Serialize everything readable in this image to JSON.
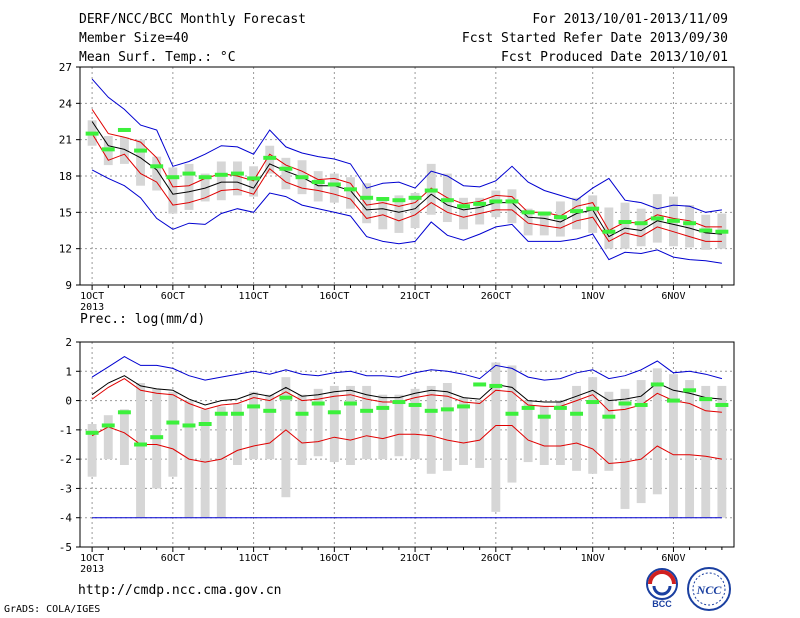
{
  "header": {
    "title": "DERF/NCC/BCC Monthly Forecast",
    "members": "Member Size=40",
    "variable": "Mean Surf. Temp.: °C",
    "period": "For 2013/10/01-2013/11/09",
    "started": "Fcst Started Refer Date 2013/09/30",
    "produced": "Fcst Produced Date 2013/10/01"
  },
  "footer": {
    "url": "http://cmdp.ncc.cma.gov.cn",
    "credit": "GrADS: COLA/IGES",
    "logo_left_text": "BCC",
    "logo_right_text": "NCC"
  },
  "colors": {
    "mean": "#000000",
    "spread": "#e00000",
    "extreme": "#0000d0",
    "box": "#d6d6d6",
    "climatology": "#3cf03c",
    "grid": "#9a9a9a"
  },
  "chart_data": [
    {
      "type": "line",
      "title": "Mean Surf. Temp.: °C",
      "x_labels": [
        "1OCT\n2013",
        "6OCT",
        "11OCT",
        "16OCT",
        "21OCT",
        "26OCT",
        "1NOV",
        "6NOV"
      ],
      "x_label_days": [
        1,
        6,
        11,
        16,
        21,
        26,
        32,
        37
      ],
      "days": 40,
      "ylim": [
        9,
        27
      ],
      "yticks": [
        9,
        12,
        15,
        18,
        21,
        24,
        27
      ],
      "grid": true,
      "series": [
        {
          "role": "extreme_high",
          "values": [
            26.0,
            24.5,
            23.5,
            22.2,
            21.8,
            18.8,
            19.2,
            19.8,
            20.5,
            20.4,
            19.8,
            21.8,
            20.4,
            19.9,
            19.6,
            19.4,
            19.0,
            17.0,
            17.4,
            17.5,
            17.0,
            18.4,
            18.0,
            17.2,
            17.1,
            17.6,
            18.8,
            17.5,
            16.8,
            16.4,
            16.0,
            17.0,
            17.8,
            16.0,
            15.8,
            15.3,
            15.6,
            15.5,
            15.0,
            15.2
          ]
        },
        {
          "role": "spread_high",
          "values": [
            23.5,
            21.5,
            21.2,
            20.8,
            19.5,
            17.1,
            17.2,
            17.8,
            18.2,
            18.0,
            17.6,
            19.8,
            18.9,
            18.4,
            17.7,
            17.8,
            17.4,
            15.6,
            15.8,
            15.5,
            15.8,
            17.0,
            16.2,
            15.7,
            15.9,
            16.4,
            16.3,
            15.0,
            15.0,
            14.7,
            15.5,
            15.8,
            13.5,
            14.2,
            14.1,
            14.8,
            14.5,
            14.3,
            13.8,
            13.8
          ]
        },
        {
          "role": "ensemble_mean",
          "values": [
            22.5,
            20.5,
            20.2,
            19.5,
            18.5,
            16.5,
            16.7,
            17.0,
            17.5,
            17.5,
            17.0,
            19.0,
            18.4,
            17.9,
            17.2,
            17.2,
            16.8,
            15.2,
            15.3,
            15.0,
            15.3,
            16.5,
            15.6,
            15.2,
            15.4,
            15.8,
            15.8,
            14.6,
            14.5,
            14.2,
            14.9,
            15.2,
            13.0,
            13.7,
            13.5,
            14.3,
            14.0,
            13.7,
            13.3,
            13.2
          ]
        },
        {
          "role": "spread_low",
          "values": [
            21.5,
            19.3,
            19.8,
            18.2,
            17.5,
            15.6,
            15.8,
            16.2,
            16.8,
            16.9,
            16.5,
            18.6,
            17.5,
            17.0,
            16.8,
            16.5,
            16.1,
            14.5,
            14.8,
            14.3,
            14.8,
            15.8,
            15.0,
            14.6,
            14.9,
            15.2,
            15.2,
            14.1,
            13.9,
            13.7,
            14.3,
            14.6,
            12.6,
            13.3,
            13.0,
            13.8,
            13.4,
            13.0,
            12.6,
            12.6
          ]
        },
        {
          "role": "extreme_low",
          "values": [
            18.5,
            17.8,
            17.2,
            16.2,
            14.5,
            13.6,
            14.1,
            14.0,
            14.9,
            15.3,
            15.0,
            16.6,
            16.3,
            15.6,
            15.3,
            15.0,
            14.7,
            13.0,
            12.6,
            12.4,
            12.6,
            14.2,
            13.1,
            12.7,
            13.2,
            13.8,
            14.0,
            12.6,
            12.6,
            12.6,
            12.8,
            13.2,
            11.1,
            11.7,
            11.6,
            11.9,
            11.3,
            11.1,
            11.0,
            10.8
          ]
        },
        {
          "role": "box_top",
          "values": [
            22.6,
            21.3,
            21.2,
            21.0,
            19.6,
            18.7,
            19.0,
            18.2,
            19.2,
            19.2,
            18.8,
            20.5,
            19.5,
            19.3,
            18.4,
            18.2,
            17.9,
            17.4,
            16.1,
            16.4,
            16.6,
            19.0,
            18.2,
            16.2,
            16.2,
            16.8,
            16.9,
            15.3,
            15.0,
            15.9,
            16.2,
            16.4,
            15.4,
            15.8,
            15.3,
            16.5,
            16.3,
            15.6,
            14.8,
            14.9
          ]
        },
        {
          "role": "box_bottom",
          "values": [
            20.5,
            18.9,
            19.0,
            17.2,
            16.8,
            14.9,
            15.2,
            15.9,
            16.0,
            16.4,
            16.3,
            18.2,
            16.9,
            16.5,
            15.9,
            15.8,
            15.3,
            14.1,
            13.6,
            13.3,
            13.7,
            14.8,
            14.2,
            13.6,
            14.0,
            14.6,
            14.1,
            13.1,
            13.1,
            13.0,
            13.6,
            13.3,
            12.0,
            12.0,
            12.2,
            12.5,
            12.2,
            12.1,
            11.9,
            12.0
          ]
        },
        {
          "role": "climatology",
          "values": [
            21.5,
            20.2,
            21.8,
            20.1,
            18.8,
            17.9,
            18.2,
            17.9,
            18.1,
            18.2,
            17.8,
            19.5,
            18.6,
            17.9,
            17.5,
            17.3,
            16.9,
            16.2,
            16.1,
            16.0,
            16.2,
            16.8,
            16.0,
            15.5,
            15.7,
            15.9,
            15.9,
            15.0,
            14.9,
            14.6,
            15.1,
            15.3,
            13.4,
            14.2,
            14.1,
            14.5,
            14.3,
            14.1,
            13.5,
            13.4
          ]
        }
      ]
    },
    {
      "type": "line",
      "title": "Prec.: log(mm/d)",
      "x_labels": [
        "1OCT\n2013",
        "6OCT",
        "11OCT",
        "16OCT",
        "21OCT",
        "26OCT",
        "1NOV",
        "6NOV"
      ],
      "x_label_days": [
        1,
        6,
        11,
        16,
        21,
        26,
        32,
        37
      ],
      "days": 40,
      "ylim": [
        -5,
        2
      ],
      "yticks": [
        -5,
        -4,
        -3,
        -2,
        -1,
        0,
        1,
        2
      ],
      "grid": true,
      "series": [
        {
          "role": "extreme_high",
          "values": [
            0.8,
            1.15,
            1.5,
            1.2,
            1.2,
            1.1,
            0.85,
            0.7,
            0.8,
            0.9,
            1.0,
            0.9,
            1.05,
            0.9,
            0.85,
            0.95,
            1.0,
            0.85,
            0.85,
            0.8,
            0.95,
            1.05,
            1.0,
            0.9,
            0.75,
            1.2,
            1.1,
            0.8,
            0.7,
            0.75,
            0.95,
            1.05,
            0.75,
            0.85,
            1.05,
            1.35,
            0.95,
            1.0,
            0.9,
            0.75
          ]
        },
        {
          "role": "ensemble_mean",
          "values": [
            0.2,
            0.6,
            0.85,
            0.5,
            0.4,
            0.35,
            0.05,
            -0.15,
            0.0,
            0.05,
            0.25,
            0.15,
            0.45,
            0.15,
            0.2,
            0.3,
            0.35,
            0.2,
            0.1,
            0.1,
            0.25,
            0.35,
            0.3,
            0.1,
            0.05,
            0.55,
            0.45,
            0.0,
            -0.05,
            -0.05,
            0.15,
            0.35,
            0.0,
            0.05,
            0.15,
            0.6,
            0.35,
            0.25,
            0.1,
            0.05
          ]
        },
        {
          "role": "spread_high",
          "values": [
            0.05,
            0.45,
            0.75,
            0.35,
            0.25,
            0.2,
            -0.1,
            -0.3,
            -0.15,
            -0.1,
            0.1,
            0.0,
            0.3,
            0.0,
            0.05,
            0.15,
            0.2,
            0.05,
            -0.05,
            -0.05,
            0.1,
            0.2,
            0.15,
            -0.05,
            -0.1,
            0.35,
            0.3,
            -0.15,
            -0.2,
            -0.2,
            0.0,
            0.2,
            -0.35,
            -0.3,
            -0.15,
            0.25,
            0.0,
            -0.1,
            -0.35,
            -0.4
          ]
        },
        {
          "role": "spread_low",
          "values": [
            -1.2,
            -0.9,
            -1.1,
            -1.5,
            -1.5,
            -1.65,
            -2.0,
            -2.1,
            -2.0,
            -1.7,
            -1.55,
            -1.45,
            -1.0,
            -1.45,
            -1.4,
            -1.25,
            -1.35,
            -1.2,
            -1.3,
            -1.15,
            -1.15,
            -1.2,
            -1.35,
            -1.45,
            -1.35,
            -0.85,
            -0.85,
            -1.35,
            -1.55,
            -1.55,
            -1.45,
            -1.65,
            -2.15,
            -2.1,
            -2.0,
            -1.55,
            -1.85,
            -1.85,
            -1.9,
            -2.0
          ]
        },
        {
          "role": "extreme_low",
          "values": [
            -4,
            -4,
            -4,
            -4,
            -4,
            -4,
            -4,
            -4,
            -4,
            -4,
            -4,
            -4,
            -4,
            -4,
            -4,
            -4,
            -4,
            -4,
            -4,
            -4,
            -4,
            -4,
            -4,
            -4,
            -4,
            -4,
            -4,
            -4,
            -4,
            -4,
            -4,
            -4,
            -4,
            -4,
            -4,
            -4,
            -4,
            -4,
            -4,
            -4
          ]
        },
        {
          "role": "box_top",
          "values": [
            -0.8,
            -0.5,
            -0.3,
            0.6,
            0.4,
            0.3,
            0.0,
            -0.3,
            -0.2,
            -0.1,
            0.3,
            0.2,
            0.8,
            0.2,
            0.4,
            0.5,
            0.5,
            0.5,
            0.2,
            0.2,
            0.4,
            0.5,
            0.6,
            0.1,
            0.0,
            1.3,
            1.2,
            0.0,
            -0.2,
            0.0,
            0.5,
            0.8,
            0.3,
            0.4,
            0.7,
            1.1,
            0.9,
            0.7,
            0.5,
            0.5
          ]
        },
        {
          "role": "box_bottom",
          "values": [
            -2.6,
            -2.0,
            -2.2,
            -4.0,
            -3.0,
            -2.6,
            -4.0,
            -4.0,
            -4.0,
            -2.2,
            -2.0,
            -2.0,
            -3.3,
            -2.2,
            -1.9,
            -2.1,
            -2.2,
            -2.0,
            -2.0,
            -1.9,
            -2.0,
            -2.5,
            -2.4,
            -2.2,
            -2.3,
            -3.8,
            -2.8,
            -2.1,
            -2.2,
            -2.2,
            -2.4,
            -2.5,
            -2.4,
            -3.7,
            -3.5,
            -3.2,
            -4.0,
            -4.0,
            -4.0,
            -4.0
          ]
        },
        {
          "role": "climatology",
          "values": [
            -1.1,
            -0.85,
            -0.4,
            -1.5,
            -1.25,
            -0.75,
            -0.85,
            -0.8,
            -0.45,
            -0.45,
            -0.2,
            -0.35,
            0.1,
            -0.45,
            -0.1,
            -0.4,
            -0.1,
            -0.35,
            -0.25,
            -0.05,
            -0.15,
            -0.35,
            -0.3,
            -0.2,
            0.55,
            0.5,
            -0.45,
            -0.25,
            -0.55,
            -0.25,
            -0.45,
            -0.05,
            -0.55,
            -0.1,
            -0.15,
            0.55,
            0.0,
            0.35,
            0.05,
            -0.15
          ]
        }
      ]
    }
  ]
}
